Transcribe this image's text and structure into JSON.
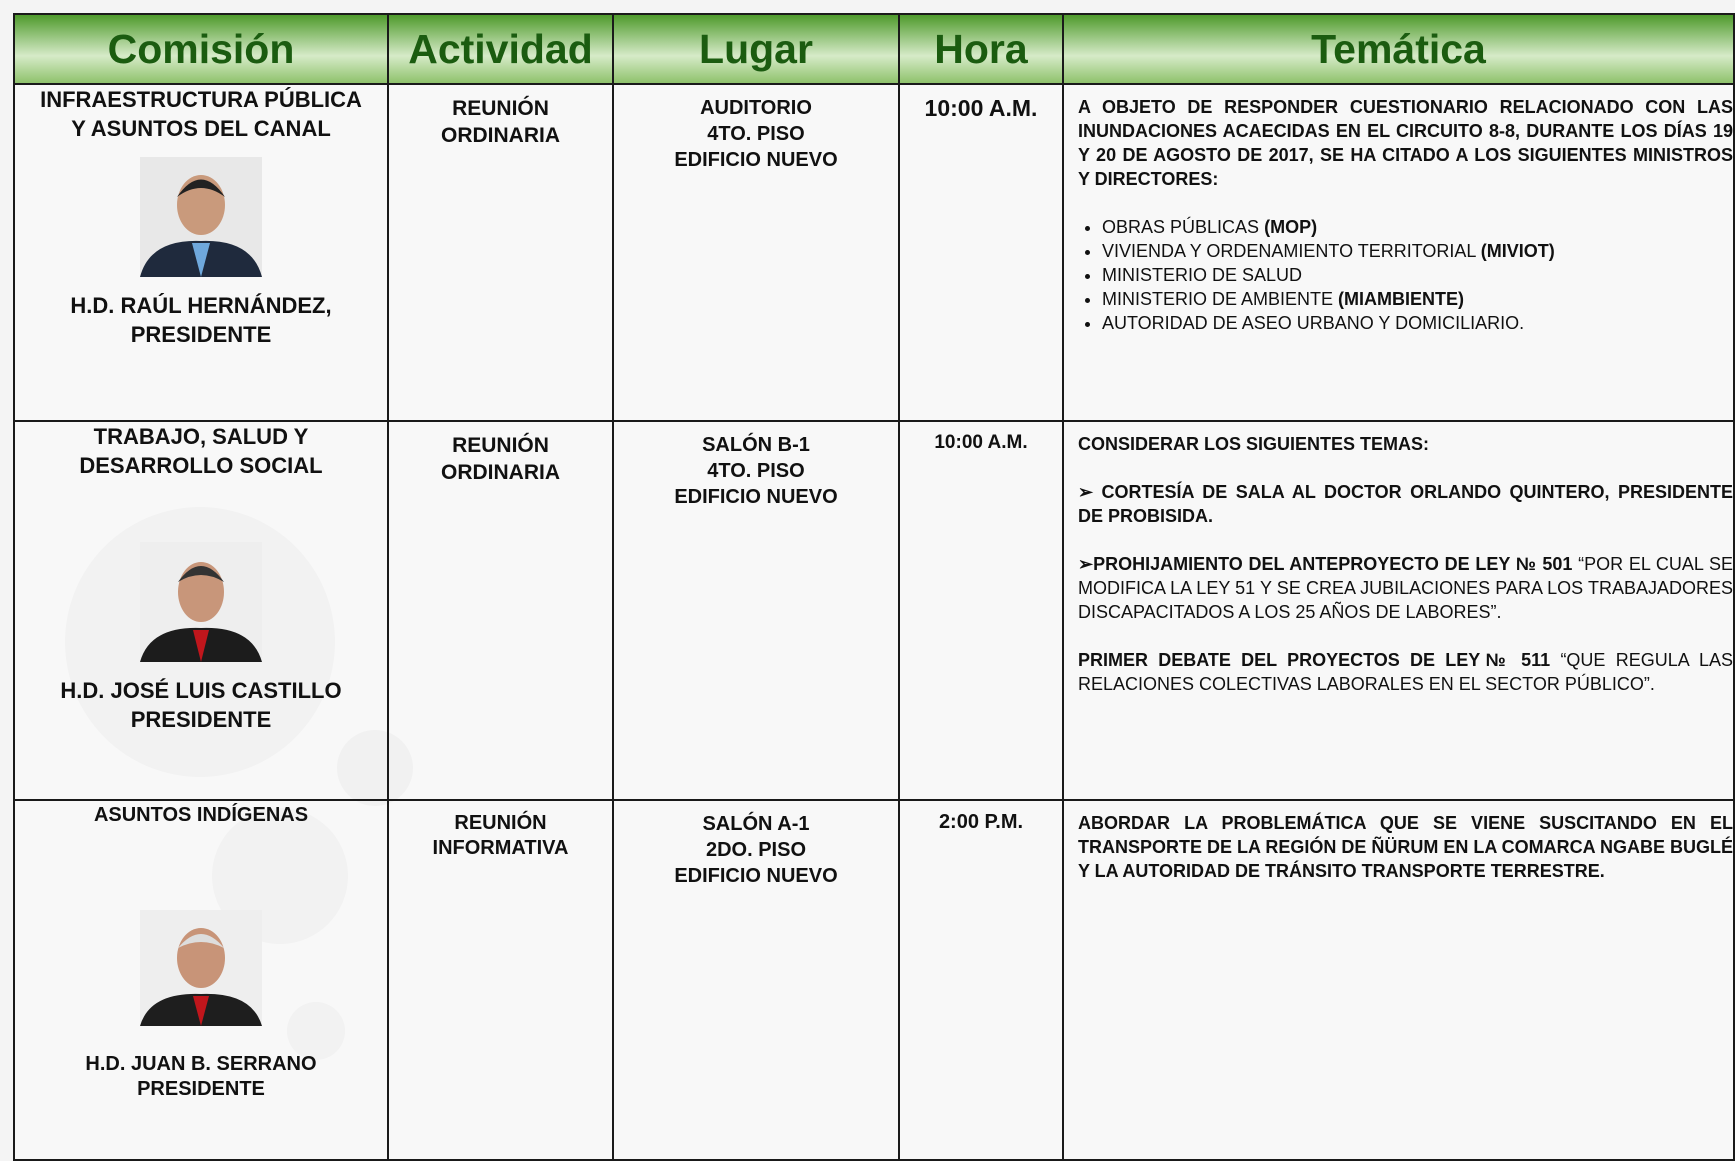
{
  "table": {
    "headers": [
      "Comisión",
      "Actividad",
      "Lugar",
      "Hora",
      "Temática"
    ],
    "rows": [
      {
        "comision": "INFRAESTRUCTURA PÚBLICA Y ASUNTOS DEL CANAL",
        "member": "H.D.  RAÚL HERNÁNDEZ,",
        "role": "PRESIDENTE",
        "actividad": "REUNIÓN ORDINARIA",
        "lugar": [
          "AUDITORIO",
          "4TO.  PISO",
          "EDIFICIO NUEVO"
        ],
        "hora": "10:00 A.M.",
        "intro": "A OBJETO DE RESPONDER  CUESTIONARIO RELACIONADO CON LAS INUNDACIONES ACAECIDAS EN EL CIRCUITO 8-8, DURANTE LOS DÍAS 19 Y 20 DE AGOSTO DE 2017, SE HA CITADO A LOS  SIGUIENTES MINISTROS Y DIRECTORES:",
        "items": [
          {
            "text": "OBRAS PÚBLICAS",
            "code": "(MOP)"
          },
          {
            "text": "VIVIENDA Y ORDENAMIENTO TERRITORIAL",
            "code": "(MIVIOT)"
          },
          {
            "text": "MINISTERIO DE SALUD"
          },
          {
            "text": "MINISTERIO DE AMBIENTE",
            "code": "(MIAMBIENTE)"
          },
          {
            "text": "AUTORIDAD DE ASEO URBANO Y DOMICILIARIO."
          }
        ]
      },
      {
        "comision": "TRABAJO, SALUD Y DESARROLLO SOCIAL",
        "member": "H.D. JOSÉ LUIS CASTILLO",
        "role": "PRESIDENTE",
        "actividad": "REUNIÓN ORDINARIA",
        "lugar": [
          "SALÓN B-1",
          "4TO.  PISO",
          "EDIFICIO NUEVO"
        ],
        "hora": "10:00 A.M.",
        "intro": "CONSIDERAR  LOS SIGUIENTES TEMAS:",
        "points": [
          {
            "lead": "CORTESÍA DE SALA AL DOCTOR ORLANDO QUINTERO, PRESIDENTE DE PROBISIDA."
          },
          {
            "lead": "PROHIJAMIENTO DEL ANTEPROYECTO DE LEY № 501",
            "quote": "“POR EL CUAL SE MODIFICA LA LEY 51 Y SE CREA JUBILACIONES PARA LOS TRABAJADORES DISCAPACITADOS A LOS 25 AÑOS DE LABORES”."
          },
          {
            "lead": "PRIMER DEBATE DEL PROYECTOS DE LEY№ 511",
            "quote": "“QUE REGULA LAS RELACIONES COLECTIVAS LABORALES EN EL SECTOR PÚBLICO”."
          }
        ]
      },
      {
        "comision": "ASUNTOS INDÍGENAS",
        "member": "H.D. JUAN B. SERRANO",
        "role": "PRESIDENTE",
        "actividad": "REUNIÓN INFORMATIVA",
        "lugar": [
          "SALÓN  A-1",
          "2DO.  PISO",
          "EDIFICIO NUEVO"
        ],
        "hora": "2:00  P.M.",
        "intro": "ABORDAR LA PROBLEMÁTICA  QUE SE VIENE SUSCITANDO EN EL TRANSPORTE DE LA REGIÓN DE ÑÜRUM  EN LA COMARCA NGABE  BUGLÉ Y LA AUTORIDAD DE  TRÁNSITO TRANSPORTE TERRESTRE."
      }
    ]
  }
}
